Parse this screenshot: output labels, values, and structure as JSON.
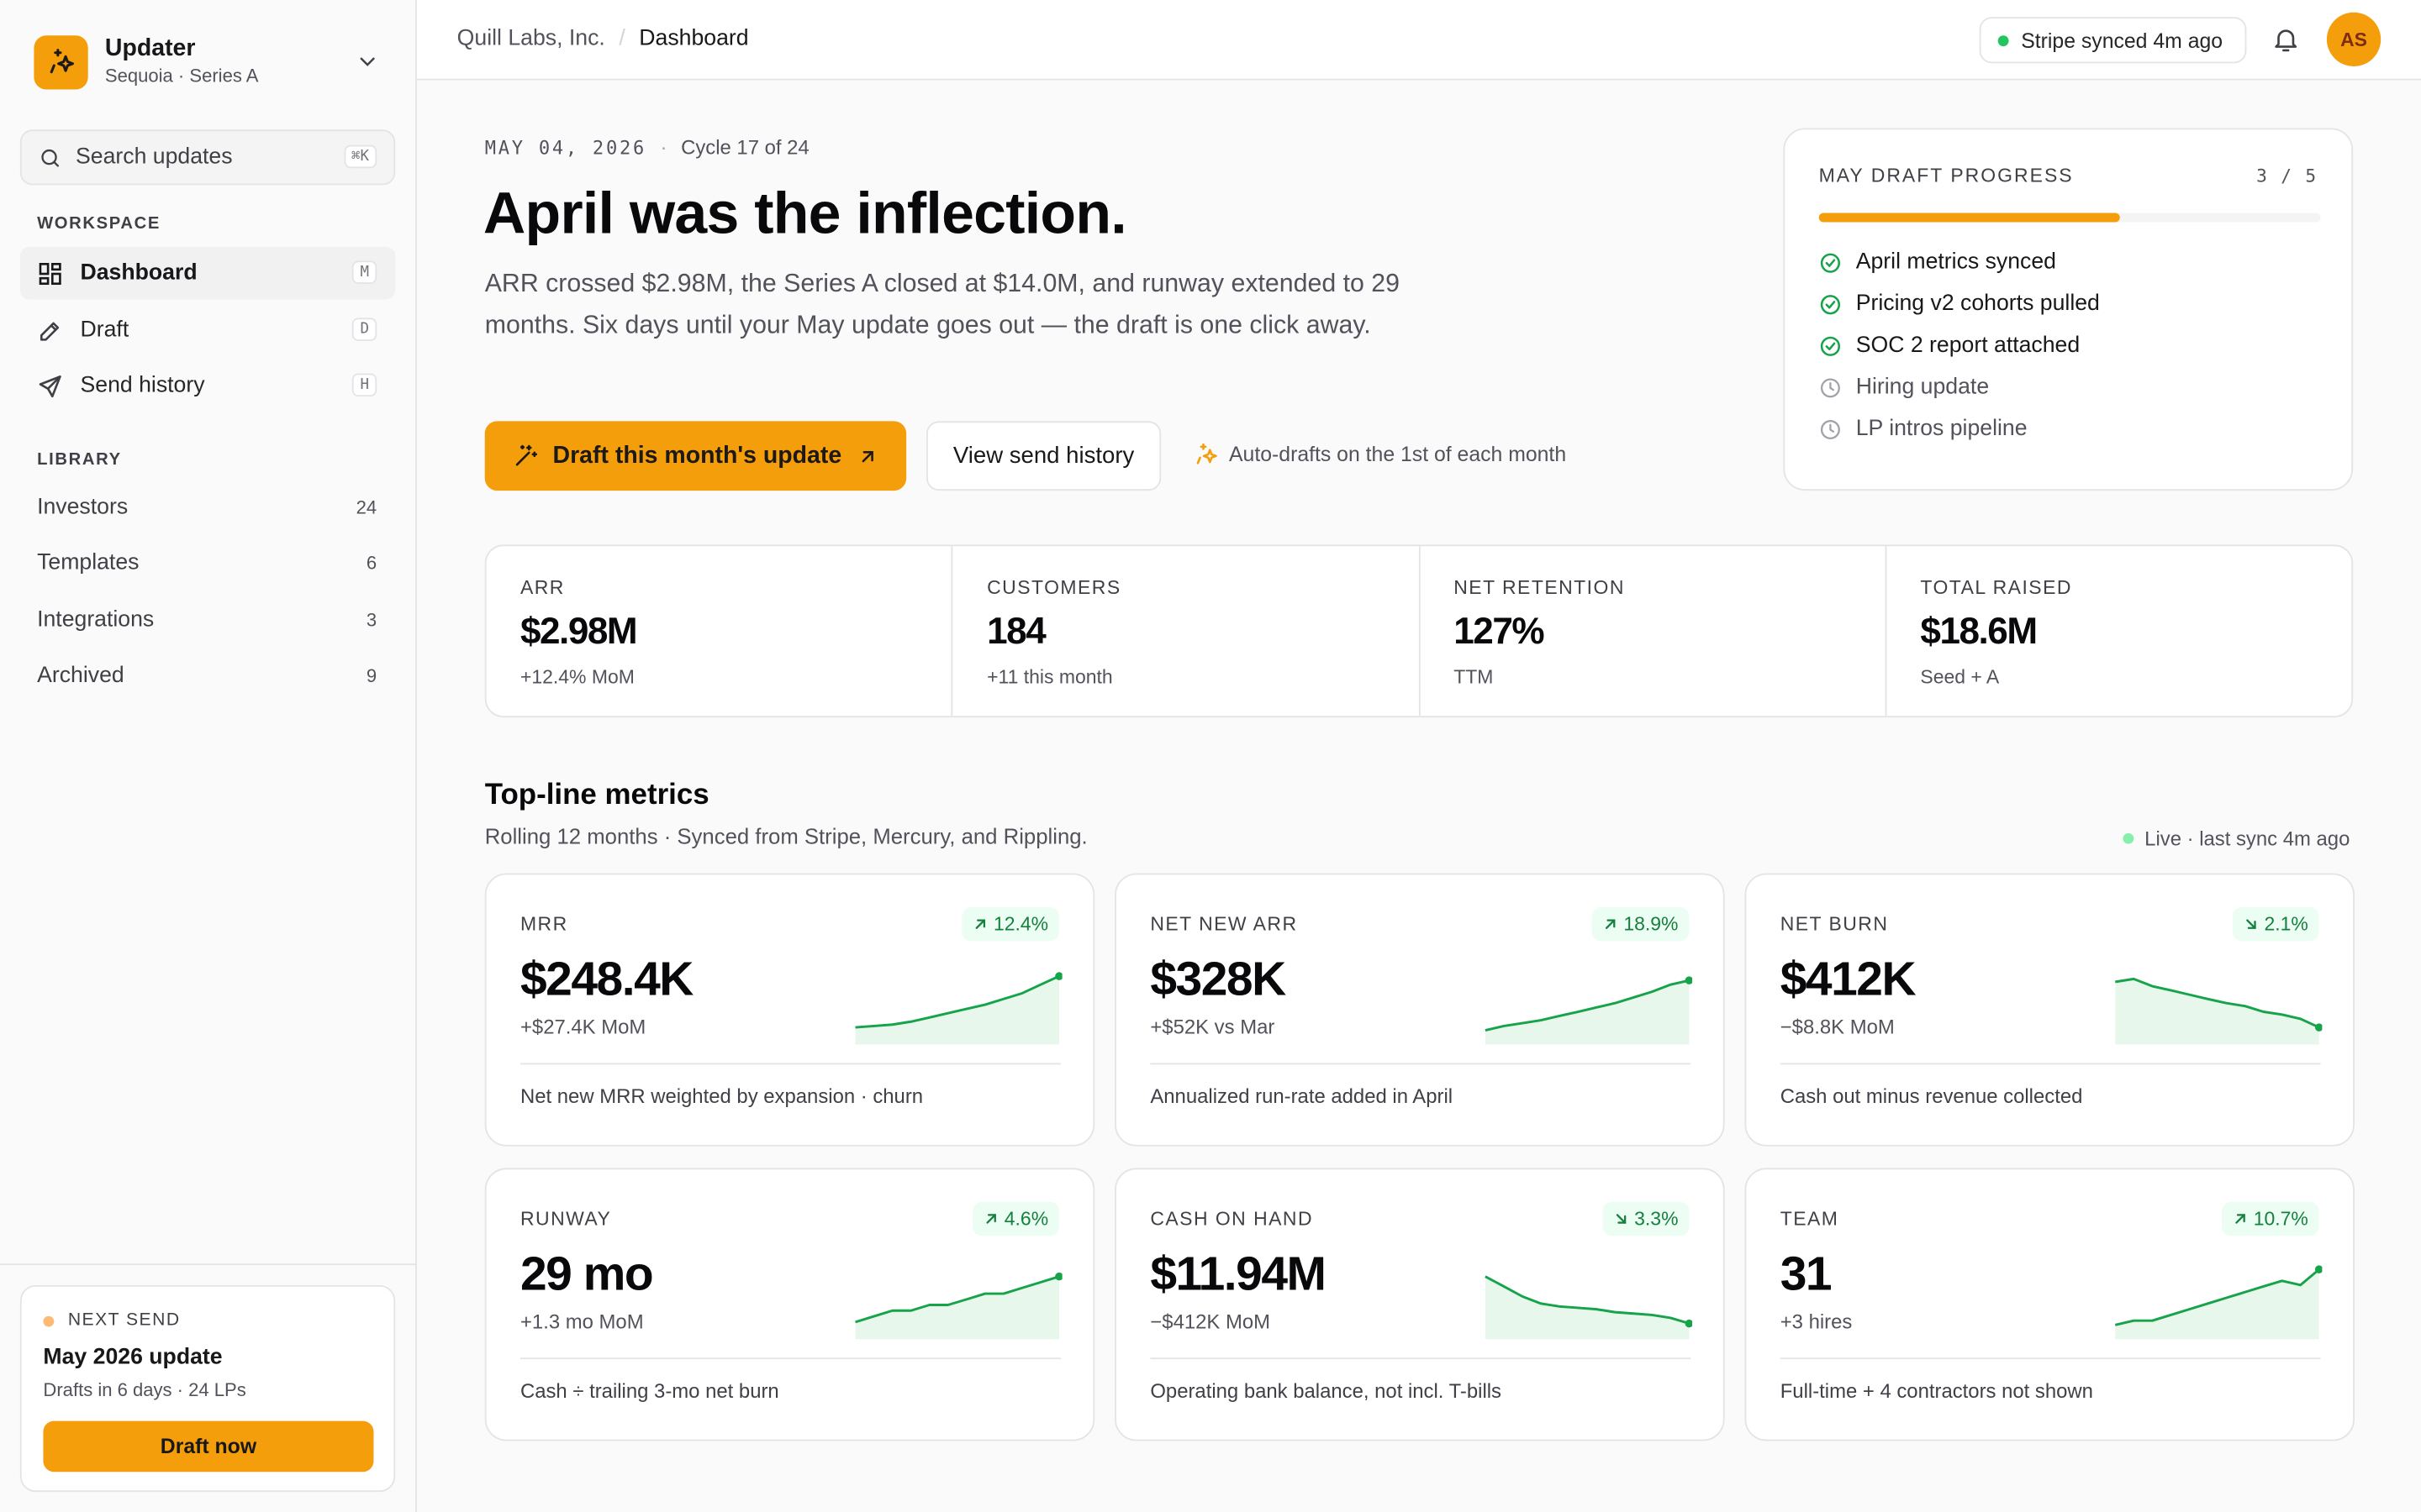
{
  "workspace": {
    "name": "Updater",
    "sub": "Sequoia · Series A"
  },
  "search": {
    "placeholder": "Search updates",
    "shortcut": "⌘K"
  },
  "sidebar": {
    "workspace_label": "WORKSPACE",
    "nav": [
      {
        "label": "Dashboard",
        "key": "M",
        "icon": "dashboard-icon",
        "active": true
      },
      {
        "label": "Draft",
        "key": "D",
        "icon": "pencil-icon",
        "active": false
      },
      {
        "label": "Send history",
        "key": "H",
        "icon": "send-icon",
        "active": false
      }
    ],
    "library_label": "LIBRARY",
    "library": [
      {
        "label": "Investors",
        "count": "24"
      },
      {
        "label": "Templates",
        "count": "6"
      },
      {
        "label": "Integrations",
        "count": "3"
      },
      {
        "label": "Archived",
        "count": "9"
      }
    ],
    "next_send": {
      "label": "NEXT SEND",
      "title": "May 2026 update",
      "sub": "Drafts in 6 days · 24 LPs",
      "button": "Draft now"
    }
  },
  "topbar": {
    "breadcrumb": [
      "Quill Labs, Inc.",
      "Dashboard"
    ],
    "sync_status": "Stripe synced 4m ago",
    "avatar_initials": "AS"
  },
  "hero": {
    "date": "MAY 04, 2026",
    "cycle": "Cycle 17 of 24",
    "title": "April was the inflection.",
    "description": "ARR crossed $2.98M, the Series A closed at $14.0M, and runway extended to 29 months. Six days until your May update goes out — the draft is one click away.",
    "primary_button": "Draft this month's update",
    "secondary_button": "View send history",
    "auto_note": "Auto-drafts on the 1st of each month"
  },
  "progress": {
    "label": "MAY DRAFT PROGRESS",
    "count": "3 / 5",
    "fraction": 0.6,
    "items": [
      {
        "label": "April metrics synced",
        "done": true
      },
      {
        "label": "Pricing v2 cohorts pulled",
        "done": true
      },
      {
        "label": "SOC 2 report attached",
        "done": true
      },
      {
        "label": "Hiring update",
        "done": false
      },
      {
        "label": "LP intros pipeline",
        "done": false
      }
    ]
  },
  "stats": [
    {
      "label": "ARR",
      "value": "$2.98M",
      "sub": "+12.4% MoM"
    },
    {
      "label": "CUSTOMERS",
      "value": "184",
      "sub": "+11 this month"
    },
    {
      "label": "NET RETENTION",
      "value": "127%",
      "sub": "TTM"
    },
    {
      "label": "TOTAL RAISED",
      "value": "$18.6M",
      "sub": "Seed + A"
    }
  ],
  "metrics_section": {
    "title": "Top-line metrics",
    "subtitle": "Rolling 12 months · Synced from Stripe, Mercury, and Rippling.",
    "live": "Live · last sync 4m ago"
  },
  "metrics": [
    {
      "label": "MRR",
      "value": "$248.4K",
      "sub": "+$27.4K MoM",
      "badge": "12.4%",
      "dir": "up",
      "footer": "Net new MRR weighted by expansion · churn",
      "spark": [
        12,
        13,
        14,
        16,
        19,
        22,
        25,
        28,
        32,
        36,
        42,
        48
      ]
    },
    {
      "label": "NET NEW ARR",
      "value": "$328K",
      "sub": "+$52K vs Mar",
      "badge": "18.9%",
      "dir": "up",
      "footer": "Annualized run-rate added in April",
      "spark": [
        10,
        13,
        15,
        17,
        20,
        23,
        26,
        29,
        33,
        37,
        42,
        45
      ]
    },
    {
      "label": "NET BURN",
      "value": "$412K",
      "sub": "−$8.8K MoM",
      "badge": "2.1%",
      "dir": "down",
      "footer": "Cash out minus revenue collected",
      "spark": [
        44,
        46,
        41,
        38,
        35,
        32,
        29,
        27,
        23,
        21,
        18,
        12
      ]
    },
    {
      "label": "RUNWAY",
      "value": "29 mo",
      "sub": "+1.3 mo MoM",
      "badge": "4.6%",
      "dir": "up",
      "footer": "Cash ÷ trailing 3-mo net burn",
      "spark": [
        12,
        16,
        20,
        20,
        24,
        24,
        28,
        32,
        32,
        36,
        40,
        44
      ]
    },
    {
      "label": "CASH ON HAND",
      "value": "$11.94M",
      "sub": "−$412K MoM",
      "badge": "3.3%",
      "dir": "down",
      "footer": "Operating bank balance, not incl. T-bills",
      "spark": [
        44,
        37,
        30,
        25,
        23,
        22,
        21,
        19,
        18,
        17,
        15,
        11
      ]
    },
    {
      "label": "TEAM",
      "value": "31",
      "sub": "+3 hires",
      "badge": "10.7%",
      "dir": "up",
      "footer": "Full-time + 4 contractors not shown",
      "spark": [
        10,
        13,
        13,
        17,
        21,
        25,
        29,
        33,
        37,
        41,
        38,
        49
      ]
    }
  ],
  "colors": {
    "accent": "#f59e0b",
    "positive": "#16a34a",
    "spark_fill": "#e8f7ec",
    "badge_bg": "#ecfdf3"
  }
}
